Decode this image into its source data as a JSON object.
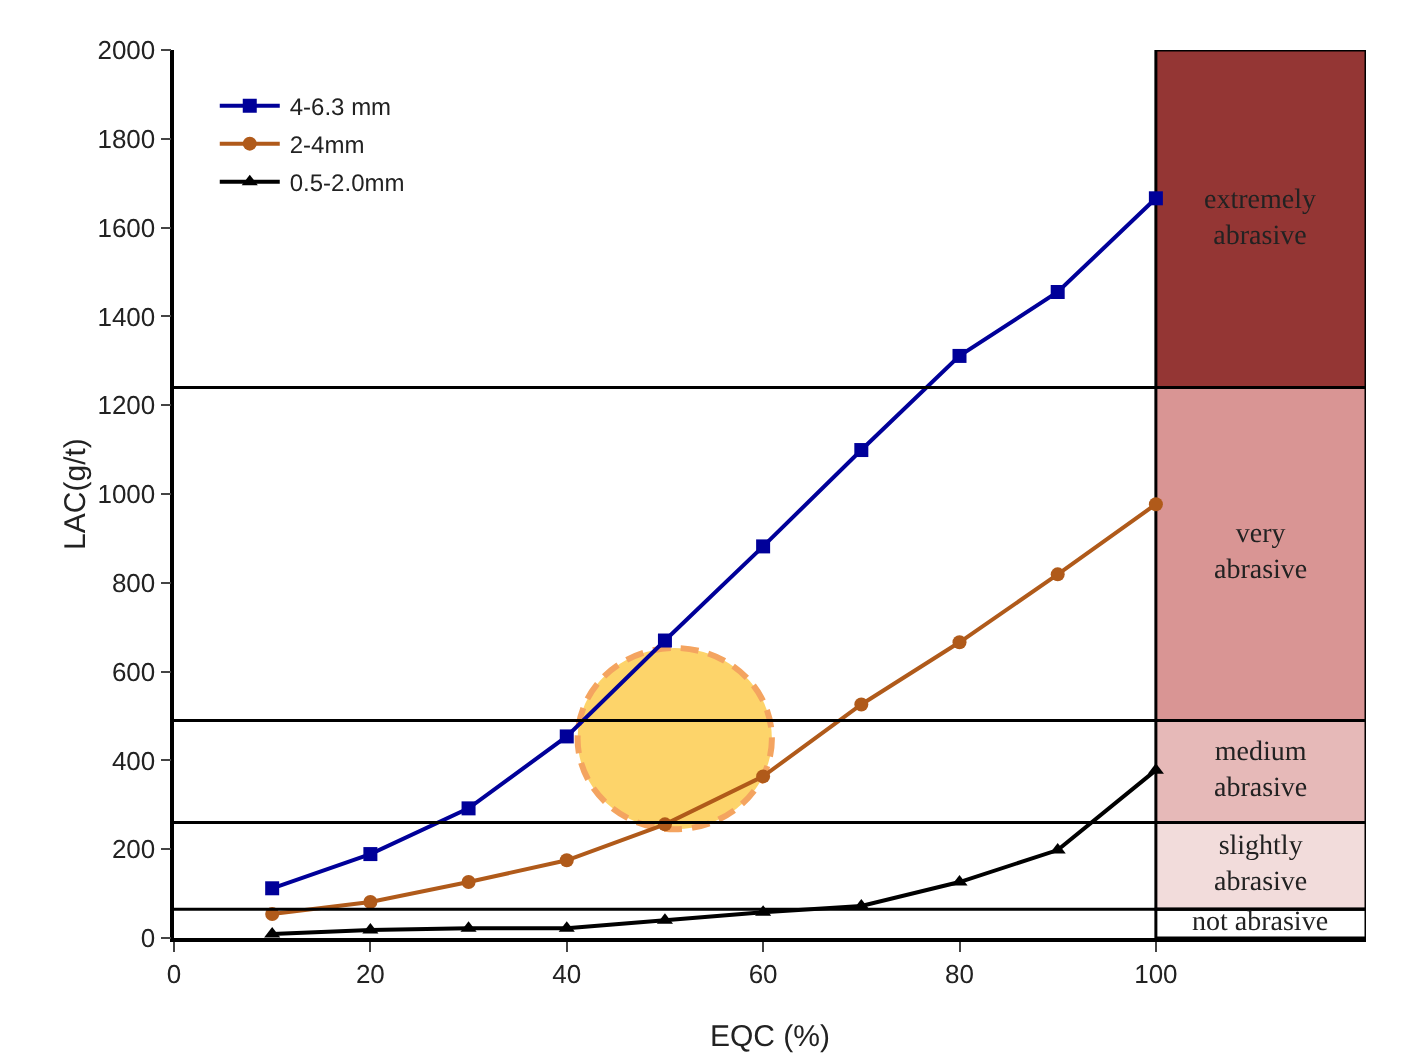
{
  "chart_data": {
    "type": "line",
    "xlabel": "EQC (%)",
    "ylabel": "LAC(g/t)",
    "x": [
      10,
      20,
      30,
      40,
      50,
      60,
      70,
      80,
      90,
      100
    ],
    "series": [
      {
        "name": "4-6.3 mm",
        "color": "#000099",
        "marker": "square",
        "values": [
          112,
          189,
          292,
          454,
          670,
          882,
          1099,
          1311,
          1455,
          1666
        ]
      },
      {
        "name": "2-4mm",
        "color": "#b05a1a",
        "marker": "circle",
        "values": [
          54,
          81,
          126,
          175,
          256,
          364,
          526,
          666,
          819,
          977
        ]
      },
      {
        "name": "0.5-2.0mm",
        "color": "#000000",
        "marker": "triangle",
        "values": [
          9,
          18,
          22,
          22,
          40,
          58,
          72,
          126,
          198,
          378
        ]
      }
    ],
    "xlim": [
      0,
      121.4
    ],
    "xticks": [
      0,
      20,
      40,
      60,
      80,
      100
    ],
    "ylim": [
      0,
      2000
    ],
    "yticks": [
      0,
      200,
      400,
      600,
      800,
      1000,
      1200,
      1400,
      1600,
      1800,
      2000
    ],
    "ref_lines": [
      {
        "axis": "y",
        "value": 1240
      },
      {
        "axis": "y",
        "value": 490
      },
      {
        "axis": "y",
        "value": 260
      },
      {
        "axis": "y",
        "value": 65
      }
    ],
    "bands": [
      {
        "axis": "y",
        "from": 1240,
        "to": 2000,
        "label": "extremely\nabrasive",
        "color": "#943634"
      },
      {
        "axis": "y",
        "from": 490,
        "to": 1240,
        "label": "very\nabrasive",
        "color": "#d99594"
      },
      {
        "axis": "y",
        "from": 260,
        "to": 490,
        "label": "medium\nabrasive",
        "color": "#e6b9b8"
      },
      {
        "axis": "y",
        "from": 65,
        "to": 260,
        "label": "slightly\nabrasive",
        "color": "#f2dcdb"
      },
      {
        "axis": "y",
        "from": 0,
        "to": 65,
        "label": "not abrasive",
        "color": "#ffffff"
      }
    ],
    "grid": false,
    "legend": "top left",
    "line_style": "solid"
  }
}
